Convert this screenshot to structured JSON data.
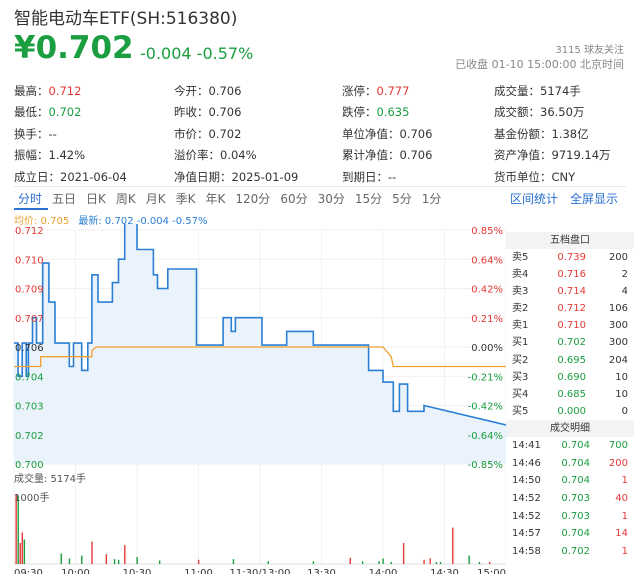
{
  "header": {
    "title": "智能电动车ETF(SH:516380)",
    "price": "¥0.702",
    "change": "-0.004 -0.57%",
    "followers": "3115 球友关注",
    "status": "已收盘 01-10 15:00:00 北京时间"
  },
  "stats": [
    [
      {
        "label": "最高：",
        "value": "0.712",
        "color": "red"
      },
      {
        "label": "今开：",
        "value": "0.706",
        "color": ""
      },
      {
        "label": "涨停：",
        "value": "0.777",
        "color": "red"
      },
      {
        "label": "成交量：",
        "value": "5174手",
        "color": ""
      }
    ],
    [
      {
        "label": "最低：",
        "value": "0.702",
        "color": "grn"
      },
      {
        "label": "昨收：",
        "value": "0.706",
        "color": ""
      },
      {
        "label": "跌停：",
        "value": "0.635",
        "color": "grn"
      },
      {
        "label": "成交额：",
        "value": "36.50万",
        "color": ""
      }
    ],
    [
      {
        "label": "换手：",
        "value": "--",
        "color": ""
      },
      {
        "label": "市价：",
        "value": "0.702",
        "color": ""
      },
      {
        "label": "单位净值：",
        "value": "0.706",
        "color": ""
      },
      {
        "label": "基金份额：",
        "value": "1.38亿",
        "color": ""
      }
    ],
    [
      {
        "label": "振幅：",
        "value": "1.42%",
        "color": ""
      },
      {
        "label": "溢价率：",
        "value": "0.04%",
        "color": ""
      },
      {
        "label": "累计净值：",
        "value": "0.706",
        "color": ""
      },
      {
        "label": "资产净值：",
        "value": "9719.14万",
        "color": ""
      }
    ],
    [
      {
        "label": "成立日：",
        "value": "2021-06-04",
        "color": ""
      },
      {
        "label": "净值日期：",
        "value": "2025-01-09",
        "color": ""
      },
      {
        "label": "到期日：",
        "value": "--",
        "color": ""
      },
      {
        "label": "货币单位：",
        "value": "CNY",
        "color": ""
      }
    ]
  ],
  "tabs": [
    "分时",
    "五日",
    "日K",
    "周K",
    "月K",
    "季K",
    "年K",
    "120分",
    "60分",
    "30分",
    "15分",
    "5分",
    "1分"
  ],
  "active_tab": 0,
  "links": {
    "range_stats": "区间统计",
    "fullscreen": "全屏显示"
  },
  "legend": {
    "avg": "均价: 0.705",
    "latest": "最新: 0.702 -0.004 -0.57%"
  },
  "volume_label": "成交量: 5174手",
  "volume_scale": "1000手",
  "colors": {
    "up": "#e53935",
    "down": "#1a9e3f",
    "price_line": "#2a7fd4",
    "avg_line": "#f0a030",
    "fill": "#eaf3fb"
  },
  "order_book": {
    "title": "五档盘口",
    "asks": [
      {
        "label": "卖5",
        "price": "0.739",
        "vol": "200",
        "color": "red"
      },
      {
        "label": "卖4",
        "price": "0.716",
        "vol": "2",
        "color": "red"
      },
      {
        "label": "卖3",
        "price": "0.714",
        "vol": "4",
        "color": "red"
      },
      {
        "label": "卖2",
        "price": "0.712",
        "vol": "106",
        "color": "red"
      },
      {
        "label": "卖1",
        "price": "0.710",
        "vol": "300",
        "color": "red"
      }
    ],
    "bids": [
      {
        "label": "买1",
        "price": "0.702",
        "vol": "300",
        "color": "grn"
      },
      {
        "label": "买2",
        "price": "0.695",
        "vol": "204",
        "color": "grn"
      },
      {
        "label": "买3",
        "price": "0.690",
        "vol": "10",
        "color": "grn"
      },
      {
        "label": "买4",
        "price": "0.685",
        "vol": "10",
        "color": "grn"
      },
      {
        "label": "买5",
        "price": "0.000",
        "vol": "0",
        "color": "grn"
      }
    ]
  },
  "trades": {
    "title": "成交明细",
    "rows": [
      {
        "time": "14:41",
        "price": "0.704",
        "vol": "700",
        "color": "grn"
      },
      {
        "time": "14:46",
        "price": "0.704",
        "vol": "200",
        "color": "red"
      },
      {
        "time": "14:50",
        "price": "0.704",
        "vol": "1",
        "color": "red"
      },
      {
        "time": "14:52",
        "price": "0.703",
        "vol": "40",
        "color": "red"
      },
      {
        "time": "14:52",
        "price": "0.703",
        "vol": "1",
        "color": "red"
      },
      {
        "time": "14:57",
        "price": "0.704",
        "vol": "14",
        "color": "red"
      },
      {
        "time": "14:58",
        "price": "0.702",
        "vol": "1",
        "color": "red"
      }
    ]
  },
  "chart_data": {
    "type": "line",
    "y_price_labels": [
      "0.712",
      "0.710",
      "0.709",
      "0.707",
      "0.706",
      "0.704",
      "0.703",
      "0.702",
      "0.700"
    ],
    "y_pct_labels": [
      "0.85%",
      "0.64%",
      "0.42%",
      "0.21%",
      "0.00%",
      "-0.21%",
      "-0.42%",
      "-0.64%",
      "-0.85%"
    ],
    "x_labels": [
      "09:30",
      "10:00",
      "10:30",
      "11:00",
      "11:30/13:00",
      "13:30",
      "14:00",
      "14:30",
      "15:00"
    ],
    "ylim": [
      0.7,
      0.712
    ],
    "prev_close": 0.706,
    "series": [
      {
        "name": "最新",
        "points": [
          [
            0,
            0.7062
          ],
          [
            2,
            0.7062
          ],
          [
            2,
            0.7045
          ],
          [
            4,
            0.7045
          ],
          [
            4,
            0.7062
          ],
          [
            6,
            0.7062
          ],
          [
            6,
            0.7045
          ],
          [
            7,
            0.7045
          ],
          [
            7,
            0.7062
          ],
          [
            9,
            0.7062
          ],
          [
            9,
            0.7075
          ],
          [
            11,
            0.7075
          ],
          [
            11,
            0.7062
          ],
          [
            14,
            0.7062
          ],
          [
            14,
            0.7103
          ],
          [
            17,
            0.7103
          ],
          [
            17,
            0.7083
          ],
          [
            20,
            0.7083
          ],
          [
            20,
            0.7062
          ],
          [
            27,
            0.7062
          ],
          [
            27,
            0.705
          ],
          [
            29,
            0.705
          ],
          [
            29,
            0.7062
          ],
          [
            33,
            0.7062
          ],
          [
            33,
            0.7048
          ],
          [
            36,
            0.7048
          ],
          [
            36,
            0.7062
          ],
          [
            38,
            0.7062
          ],
          [
            38,
            0.7097
          ],
          [
            41,
            0.7097
          ],
          [
            41,
            0.7083
          ],
          [
            48,
            0.7083
          ],
          [
            48,
            0.7093
          ],
          [
            51,
            0.7093
          ],
          [
            51,
            0.7105
          ],
          [
            54,
            0.7105
          ],
          [
            54,
            0.7125
          ],
          [
            60,
            0.7125
          ],
          [
            60,
            0.711
          ],
          [
            68,
            0.711
          ],
          [
            68,
            0.7097
          ],
          [
            70,
            0.7097
          ],
          [
            70,
            0.709
          ],
          [
            75,
            0.709
          ],
          [
            75,
            0.71
          ],
          [
            89,
            0.71
          ],
          [
            89,
            0.7061
          ],
          [
            102,
            0.7061
          ],
          [
            102,
            0.7075
          ],
          [
            106,
            0.7075
          ],
          [
            106,
            0.7068
          ],
          [
            108,
            0.7068
          ],
          [
            108,
            0.7075
          ],
          [
            121,
            0.7075
          ],
          [
            121,
            0.7061
          ],
          [
            133,
            0.7061
          ],
          [
            133,
            0.7068
          ],
          [
            146,
            0.7068
          ],
          [
            146,
            0.7061
          ],
          [
            173,
            0.7061
          ],
          [
            173,
            0.7048
          ],
          [
            180,
            0.7048
          ],
          [
            180,
            0.7042
          ],
          [
            185,
            0.7042
          ],
          [
            185,
            0.7027
          ],
          [
            188,
            0.7027
          ],
          [
            188,
            0.7041
          ],
          [
            192,
            0.7041
          ],
          [
            192,
            0.7027
          ],
          [
            200,
            0.7027
          ],
          [
            200,
            0.703
          ],
          [
            240,
            0.702
          ]
        ]
      },
      {
        "name": "均价",
        "points": [
          [
            0,
            0.705
          ],
          [
            13,
            0.705
          ],
          [
            13,
            0.7055
          ],
          [
            38,
            0.7055
          ],
          [
            38,
            0.7058
          ],
          [
            40,
            0.706
          ],
          [
            155,
            0.706
          ],
          [
            170,
            0.706
          ],
          [
            180,
            0.706
          ],
          [
            184,
            0.7055
          ],
          [
            185,
            0.705
          ],
          [
            240,
            0.705
          ]
        ]
      }
    ],
    "volume": [
      {
        "x": 1,
        "v": 1000,
        "c": "red"
      },
      {
        "x": 2,
        "v": 980,
        "c": "grn"
      },
      {
        "x": 3,
        "v": 300,
        "c": "red"
      },
      {
        "x": 4,
        "v": 450,
        "c": "red"
      },
      {
        "x": 5,
        "v": 350,
        "c": "grn"
      },
      {
        "x": 23,
        "v": 150,
        "c": "grn"
      },
      {
        "x": 27,
        "v": 80,
        "c": "grn"
      },
      {
        "x": 33,
        "v": 120,
        "c": "grn"
      },
      {
        "x": 38,
        "v": 320,
        "c": "red"
      },
      {
        "x": 45,
        "v": 140,
        "c": "red"
      },
      {
        "x": 49,
        "v": 70,
        "c": "grn"
      },
      {
        "x": 51,
        "v": 60,
        "c": "grn"
      },
      {
        "x": 54,
        "v": 270,
        "c": "red"
      },
      {
        "x": 60,
        "v": 100,
        "c": "grn"
      },
      {
        "x": 71,
        "v": 50,
        "c": "grn"
      },
      {
        "x": 90,
        "v": 60,
        "c": "red"
      },
      {
        "x": 107,
        "v": 70,
        "c": "grn"
      },
      {
        "x": 124,
        "v": 40,
        "c": "grn"
      },
      {
        "x": 146,
        "v": 40,
        "c": "grn"
      },
      {
        "x": 164,
        "v": 90,
        "c": "red"
      },
      {
        "x": 170,
        "v": 40,
        "c": "grn"
      },
      {
        "x": 178,
        "v": 40,
        "c": "grn"
      },
      {
        "x": 180,
        "v": 80,
        "c": "grn"
      },
      {
        "x": 184,
        "v": 30,
        "c": "grn"
      },
      {
        "x": 190,
        "v": 300,
        "c": "red"
      },
      {
        "x": 200,
        "v": 60,
        "c": "red"
      },
      {
        "x": 203,
        "v": 80,
        "c": "red"
      },
      {
        "x": 206,
        "v": 30,
        "c": "grn"
      },
      {
        "x": 208,
        "v": 30,
        "c": "grn"
      },
      {
        "x": 214,
        "v": 520,
        "c": "red"
      },
      {
        "x": 222,
        "v": 120,
        "c": "grn"
      },
      {
        "x": 227,
        "v": 30,
        "c": "grn"
      },
      {
        "x": 232,
        "v": 30,
        "c": "red"
      }
    ]
  }
}
